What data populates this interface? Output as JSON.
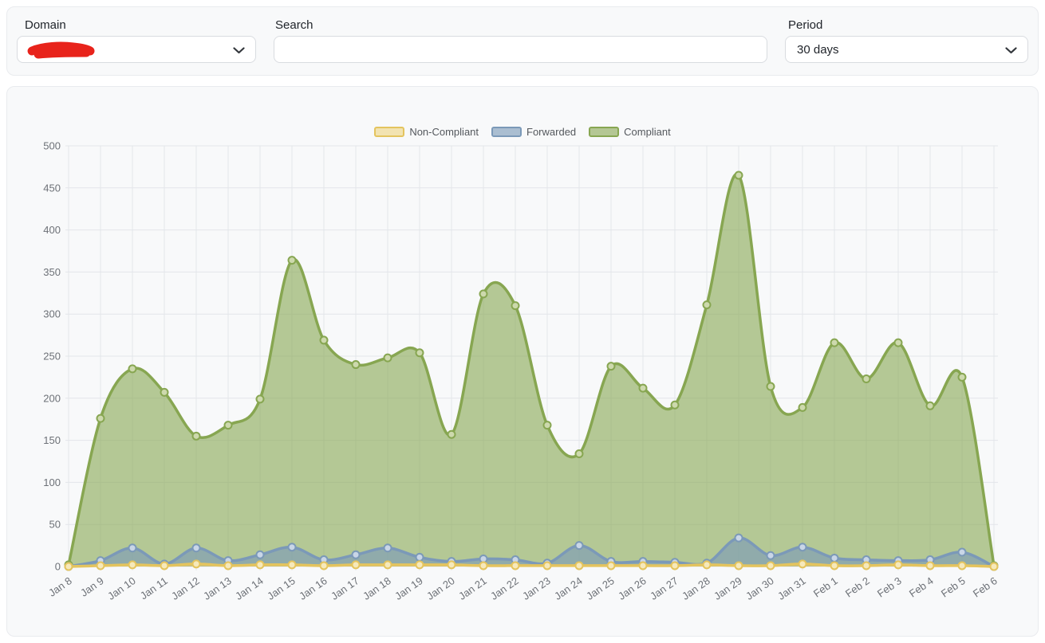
{
  "filters": {
    "domain": {
      "label": "Domain",
      "value": "",
      "redacted": true,
      "redaction_color": "#e8231b"
    },
    "search": {
      "label": "Search",
      "value": "",
      "placeholder": ""
    },
    "period": {
      "label": "Period",
      "value": "30 days"
    }
  },
  "chart_data": {
    "type": "area",
    "title": "",
    "xlabel": "",
    "ylabel": "",
    "ylim": [
      0,
      500
    ],
    "ytick_step": 50,
    "grid": true,
    "legend_position": "top",
    "x": [
      "Jan 8",
      "Jan 9",
      "Jan 10",
      "Jan 11",
      "Jan 12",
      "Jan 13",
      "Jan 14",
      "Jan 15",
      "Jan 16",
      "Jan 17",
      "Jan 18",
      "Jan 19",
      "Jan 20",
      "Jan 21",
      "Jan 22",
      "Jan 23",
      "Jan 24",
      "Jan 25",
      "Jan 26",
      "Jan 27",
      "Jan 28",
      "Jan 29",
      "Jan 30",
      "Jan 31",
      "Feb 1",
      "Feb 2",
      "Feb 3",
      "Feb 4",
      "Feb 5",
      "Feb 6"
    ],
    "series": [
      {
        "name": "Non-Compliant",
        "color": "#e4c45e",
        "fill": "#edcd68",
        "fill_opacity": 0.5,
        "marker_fill": "#f6e9bb",
        "values": [
          0,
          1,
          2,
          1,
          3,
          1,
          2,
          2,
          1,
          2,
          2,
          2,
          2,
          1,
          1,
          1,
          1,
          1,
          1,
          1,
          2,
          1,
          1,
          3,
          1,
          1,
          2,
          1,
          1,
          0
        ]
      },
      {
        "name": "Forwarded",
        "color": "#7b99b8",
        "fill": "#7b99b8",
        "fill_opacity": 0.62,
        "marker_fill": "#c9d6e7",
        "values": [
          0,
          7,
          22,
          3,
          22,
          7,
          14,
          23,
          8,
          14,
          22,
          11,
          6,
          9,
          8,
          4,
          25,
          6,
          6,
          5,
          4,
          34,
          13,
          23,
          10,
          8,
          7,
          8,
          17,
          0
        ]
      },
      {
        "name": "Compliant",
        "color": "#87a651",
        "fill": "#87a651",
        "fill_opacity": 0.6,
        "marker_fill": "#cdd9ad",
        "values": [
          2,
          176,
          235,
          207,
          155,
          168,
          199,
          364,
          269,
          240,
          248,
          254,
          157,
          324,
          310,
          168,
          134,
          238,
          212,
          192,
          311,
          465,
          214,
          189,
          266,
          223,
          266,
          191,
          225,
          1
        ]
      }
    ],
    "axis_text_color": "#6d7177",
    "grid_color": "#e3e6ea"
  }
}
